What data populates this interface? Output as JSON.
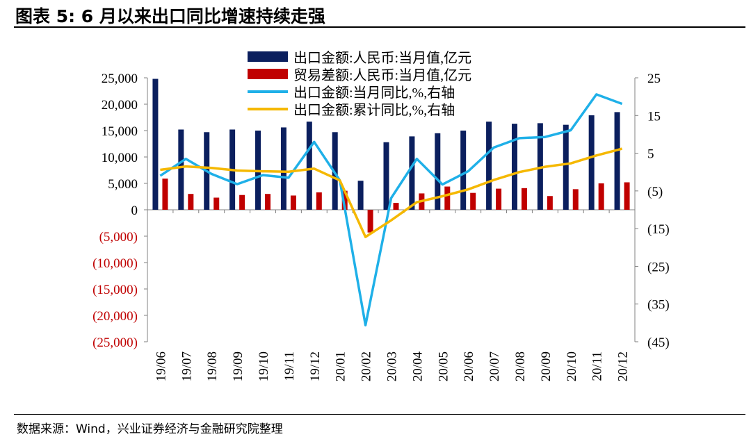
{
  "header": {
    "title": "图表 5:  6 月以来出口同比增速持续走强"
  },
  "footer": {
    "source": "数据来源：Wind，兴业证券经济与金融研究院整理"
  },
  "colors": {
    "export_bar": "#0b1f5e",
    "balance_bar": "#c00000",
    "yoy_line": "#1fb0e8",
    "cum_line": "#f5b800",
    "negative_tick": "#c00000"
  },
  "chart_data": {
    "type": "bar+line",
    "title": "6 月以来出口同比增速持续走强",
    "categories": [
      "19/06",
      "19/07",
      "19/08",
      "19/09",
      "19/10",
      "19/11",
      "19/12",
      "20/01",
      "20/02",
      "20/03",
      "20/04",
      "20/05",
      "20/06",
      "20/07",
      "20/08",
      "20/09",
      "20/10",
      "20/11",
      "20/12"
    ],
    "left_axis": {
      "ylim": [
        -25000,
        25000
      ],
      "ticks": [
        25000,
        20000,
        15000,
        10000,
        5000,
        0,
        -5000,
        -10000,
        -15000,
        -20000,
        -25000
      ],
      "tick_labels": [
        "25,000",
        "20,000",
        "15,000",
        "10,000",
        "5,000",
        "0",
        "(5,000)",
        "(10,000)",
        "(15,000)",
        "(20,000)",
        "(25,000)"
      ]
    },
    "right_axis": {
      "ylim": [
        -45,
        25
      ],
      "ticks": [
        25,
        15,
        5,
        -5,
        -15,
        -25,
        -35,
        -45
      ],
      "tick_labels": [
        "25",
        "15",
        "5",
        "(5)",
        "(15)",
        "(25)",
        "(35)",
        "(45)"
      ]
    },
    "series": [
      {
        "name": "出口金额:人民币:当月值,亿元",
        "type": "bar",
        "axis": "left",
        "values": [
          24800,
          15200,
          14700,
          15200,
          15000,
          15600,
          16700,
          14700,
          5500,
          12800,
          13900,
          14500,
          15000,
          16700,
          16300,
          16400,
          16100,
          17900,
          18500
        ]
      },
      {
        "name": "贸易差额:人民币:当月值,亿元",
        "type": "bar",
        "axis": "left",
        "values": [
          5900,
          3000,
          2300,
          2800,
          3000,
          2700,
          3300,
          3600,
          -4300,
          1300,
          3100,
          4400,
          3200,
          4000,
          4100,
          2600,
          3900,
          5000,
          5200
        ]
      },
      {
        "name": "出口金额:当月同比,%,右轴",
        "type": "line",
        "axis": "right",
        "values": [
          -1.0,
          3.5,
          -0.5,
          -3.2,
          -0.8,
          -1.5,
          8.0,
          -2.2,
          -40.6,
          -6.9,
          3.5,
          -3.3,
          0.2,
          6.5,
          9.0,
          9.3,
          11.1,
          20.6,
          18.1
        ]
      },
      {
        "name": "出口金额:累计同比,%,右轴",
        "type": "line",
        "axis": "right",
        "values": [
          0.6,
          1.5,
          1.1,
          0.4,
          0.2,
          0.1,
          0.9,
          -2.2,
          -17.2,
          -12.8,
          -8.0,
          -6.4,
          -4.6,
          -2.1,
          0.0,
          1.4,
          2.3,
          4.4,
          6.2
        ]
      }
    ]
  }
}
